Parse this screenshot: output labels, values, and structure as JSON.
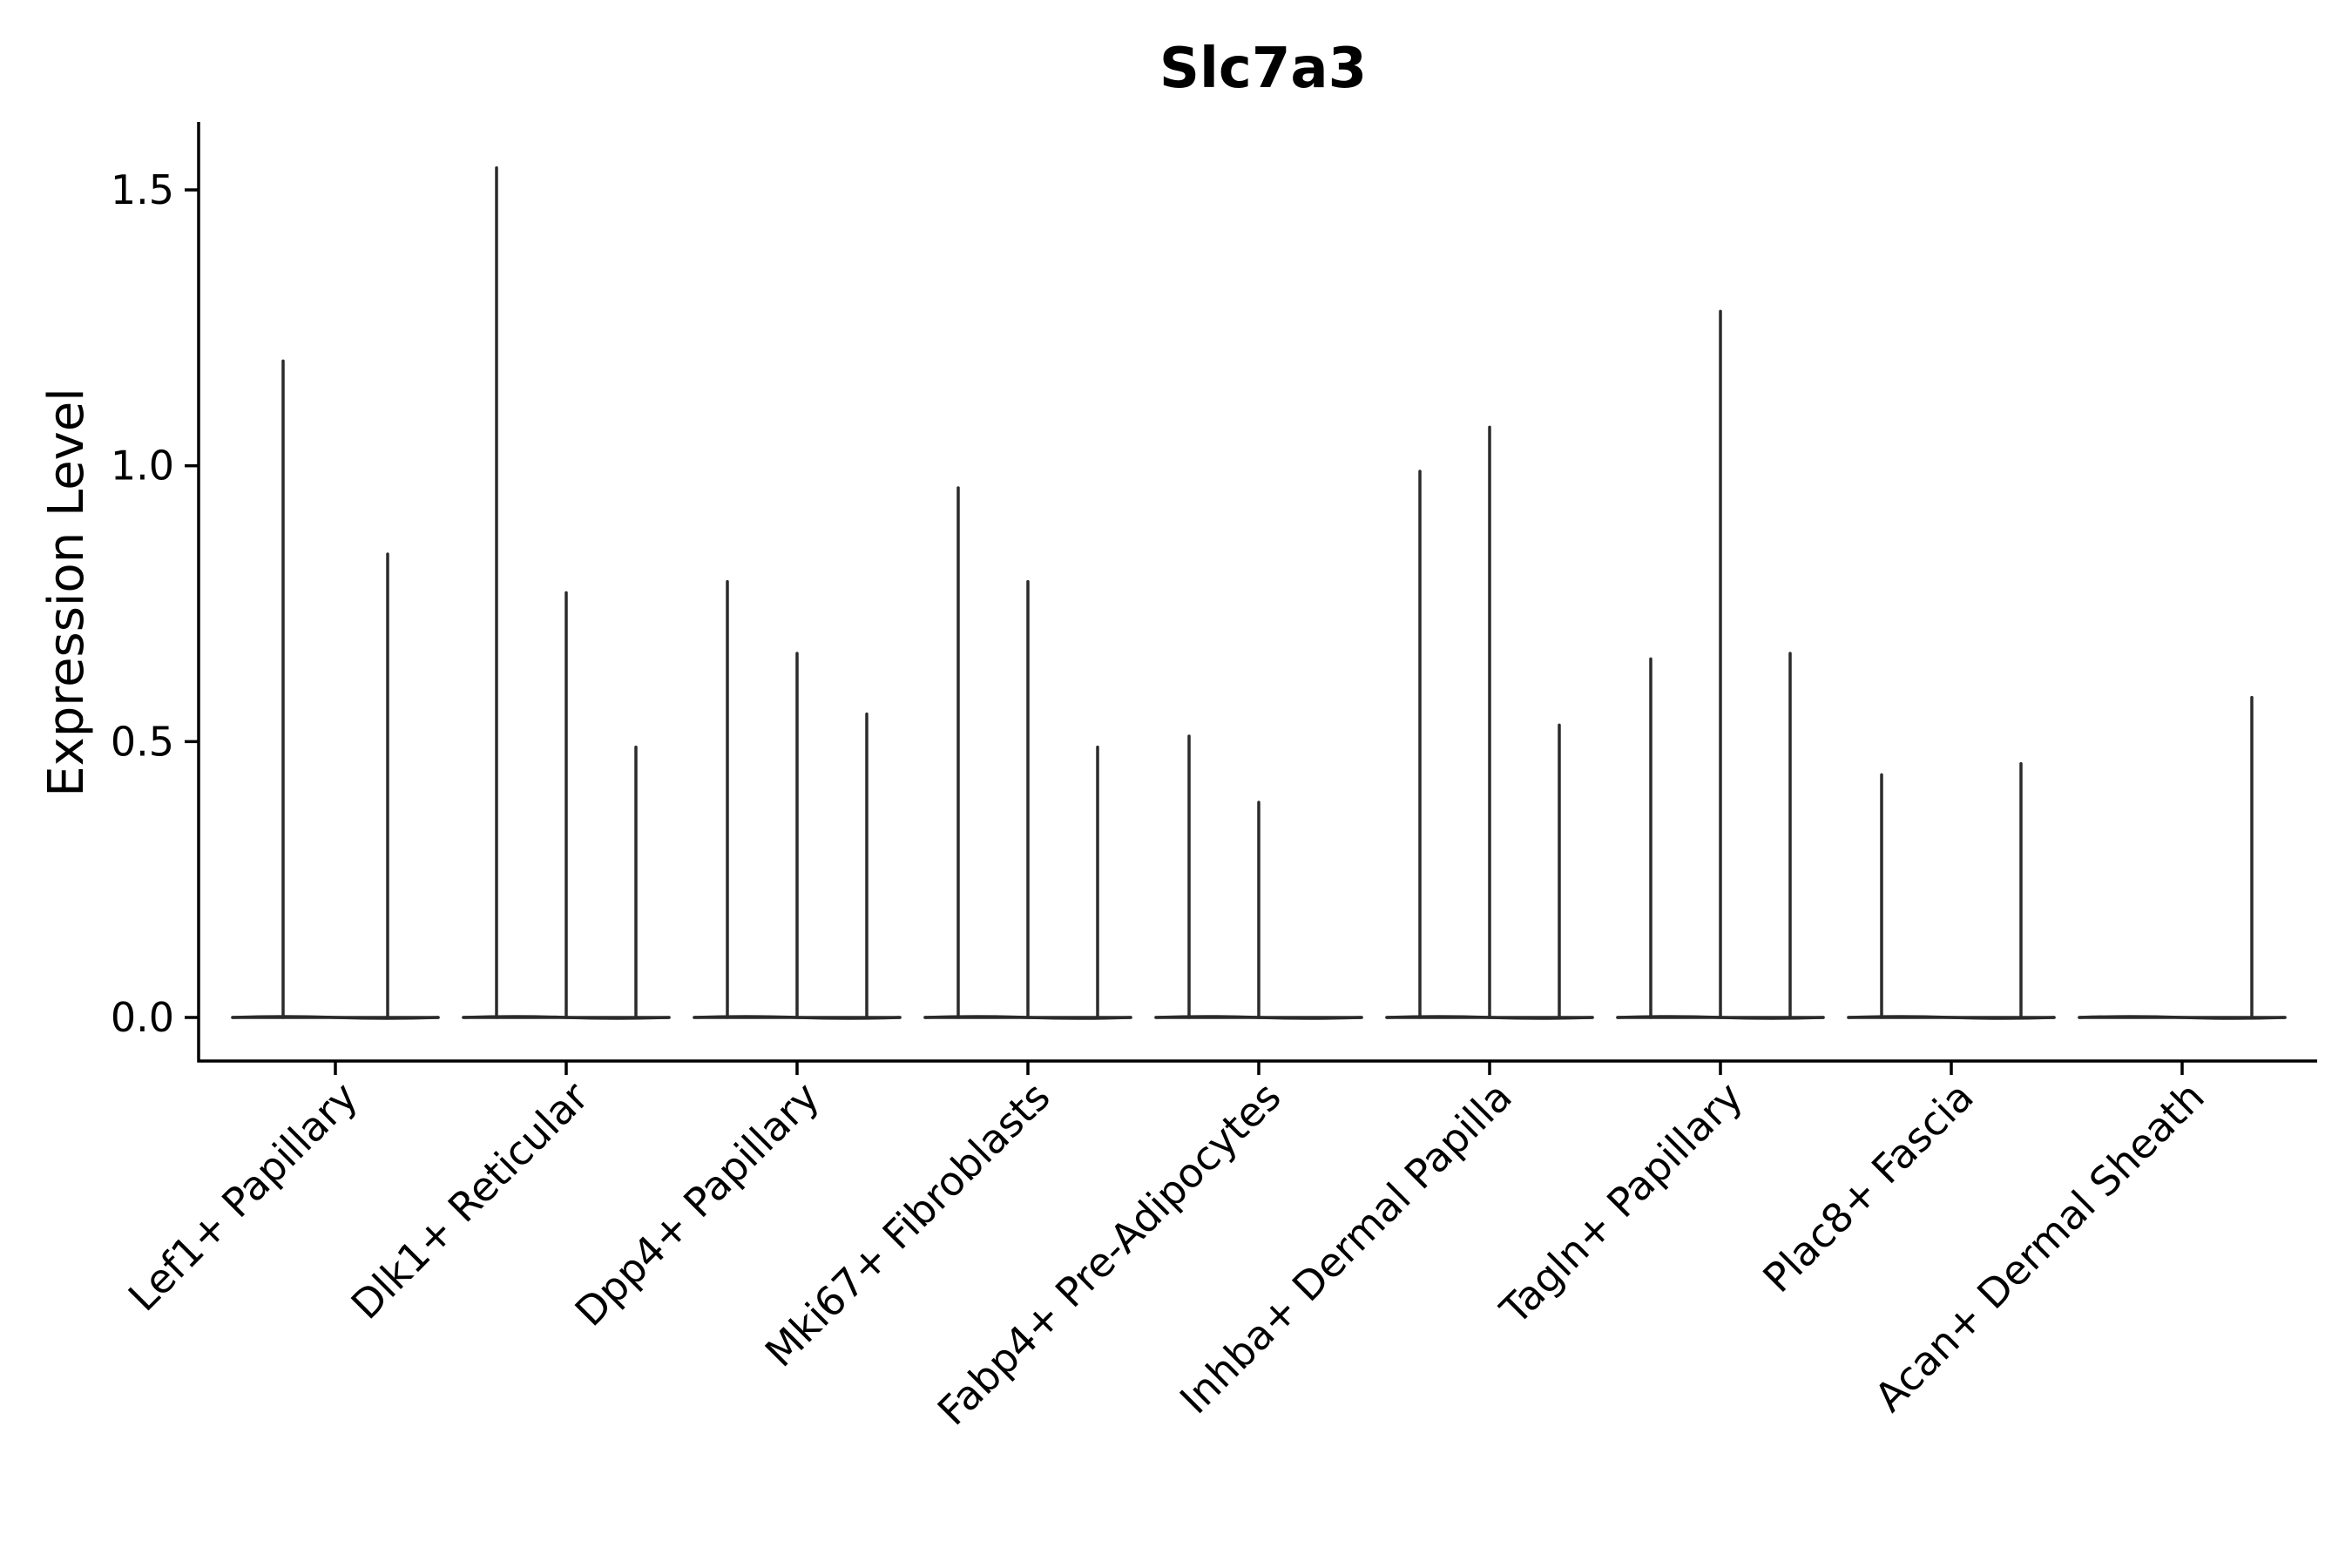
{
  "chart_data": {
    "type": "violin",
    "title": "Slc7a3",
    "xlabel": "",
    "ylabel": "Expression Level",
    "ylim": [
      -0.08,
      1.62
    ],
    "yticks": [
      0.0,
      0.5,
      1.0,
      1.5
    ],
    "ytick_labels": [
      "0.0",
      "0.5",
      "1.0",
      "1.5"
    ],
    "grid": false,
    "legend": "none",
    "categories": [
      "Lef1+ Papillary",
      "Dlk1+ Reticular",
      "Dpp4+ Papillary",
      "Mki67+ Fibroblasts",
      "Fabp4+ Pre-Adipocytes",
      "Inhba+ Dermal Papilla",
      "Tagln+ Papillary",
      "Plac8+ Fascia",
      "Acan+ Dermal Sheath"
    ],
    "violins": [
      {
        "category": "Lef1+ Papillary",
        "spikes": [
          {
            "offset": -0.6,
            "max": 1.19
          },
          {
            "offset": 0.6,
            "max": 0.84
          }
        ]
      },
      {
        "category": "Dlk1+ Reticular",
        "spikes": [
          {
            "offset": -0.8,
            "max": 1.54
          },
          {
            "offset": 0.0,
            "max": 0.77
          },
          {
            "offset": 0.8,
            "max": 0.49
          }
        ]
      },
      {
        "category": "Dpp4+ Papillary",
        "spikes": [
          {
            "offset": -0.8,
            "max": 0.79
          },
          {
            "offset": 0.0,
            "max": 0.66
          },
          {
            "offset": 0.8,
            "max": 0.55
          }
        ]
      },
      {
        "category": "Mki67+ Fibroblasts",
        "spikes": [
          {
            "offset": -0.8,
            "max": 0.96
          },
          {
            "offset": 0.0,
            "max": 0.79
          },
          {
            "offset": 0.8,
            "max": 0.49
          }
        ]
      },
      {
        "category": "Fabp4+ Pre-Adipocytes",
        "spikes": [
          {
            "offset": -0.8,
            "max": 0.51
          },
          {
            "offset": 0.0,
            "max": 0.39
          }
        ]
      },
      {
        "category": "Inhba+ Dermal Papilla",
        "spikes": [
          {
            "offset": -0.8,
            "max": 0.99
          },
          {
            "offset": 0.0,
            "max": 1.07
          },
          {
            "offset": 0.8,
            "max": 0.53
          }
        ]
      },
      {
        "category": "Tagln+ Papillary",
        "spikes": [
          {
            "offset": -0.8,
            "max": 0.65
          },
          {
            "offset": 0.0,
            "max": 1.28
          },
          {
            "offset": 0.8,
            "max": 0.66
          }
        ]
      },
      {
        "category": "Plac8+ Fascia",
        "spikes": [
          {
            "offset": -0.8,
            "max": 0.44
          },
          {
            "offset": 0.8,
            "max": 0.46
          }
        ]
      },
      {
        "category": "Acan+ Dermal Sheath",
        "spikes": [
          {
            "offset": 0.8,
            "max": 0.58
          }
        ]
      }
    ],
    "colors": {
      "violin": "#2b2b2b",
      "axis": "#000000",
      "background": "#ffffff"
    }
  }
}
